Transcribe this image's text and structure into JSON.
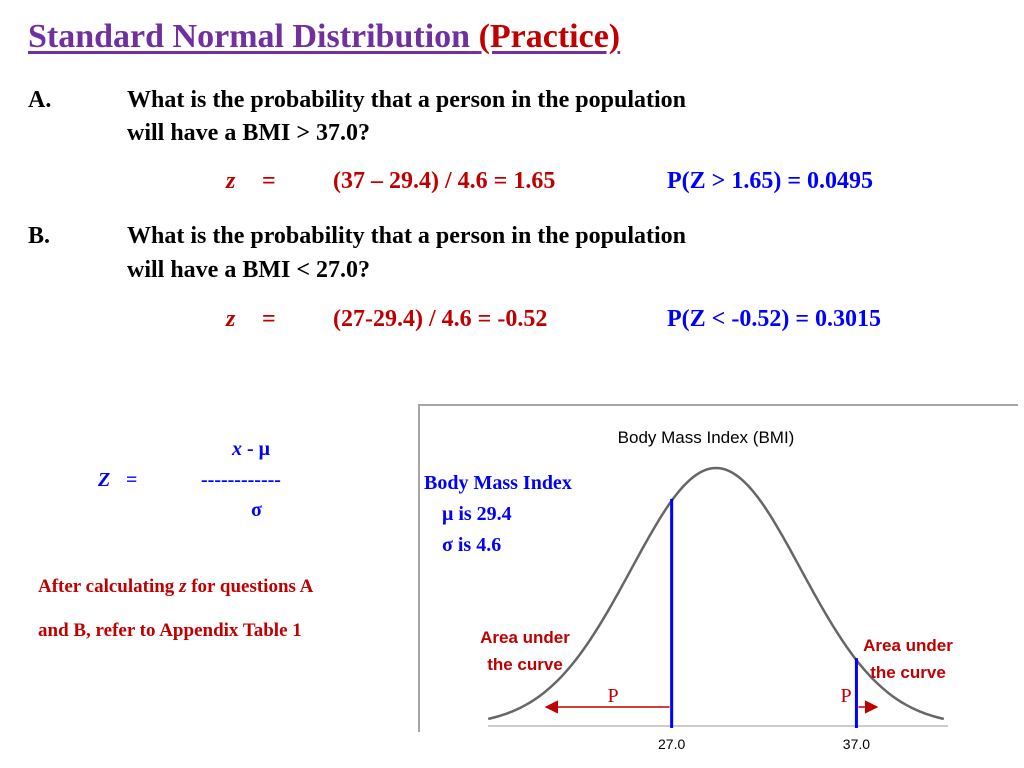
{
  "title": {
    "main": "Standard Normal Distribution",
    "suffix": "(Practice)"
  },
  "questions": [
    {
      "letter": "A.",
      "line1": "What is the probability that a person in the population",
      "line2": "will have a BMI > 37.0?",
      "z_symbol": "z",
      "equals": "=",
      "calculation": "(37 – 29.4) / 4.6  =  1.65",
      "probability": "P(Z > 1.65)  =  0.0495"
    },
    {
      "letter": "B.",
      "line1": "What is the probability that a person in the population",
      "line2": "will have a BMI < 27.0?",
      "z_symbol": "z",
      "equals": "=",
      "calculation": "(27-29.4) / 4.6   =  -0.52",
      "probability": "P(Z < -0.52)  =  0.3015"
    }
  ],
  "formula": {
    "lhs": "Z",
    "equals": "=",
    "numerator_x": "x",
    "numerator_rest": " - μ",
    "bar": "------------",
    "denominator": "σ"
  },
  "note": {
    "line1_a": "After calculating ",
    "line1_z": "z",
    "line1_b": " for questions A",
    "line2": "and B, refer to Appendix Table 1"
  },
  "chart_data": {
    "type": "area",
    "title": "Body Mass Index (BMI)",
    "distribution": "normal",
    "mean": 29.4,
    "sd": 4.6,
    "legend_lines": [
      "Body Mass Index",
      "μ is 29.4",
      "σ is 4.6"
    ],
    "cutoffs": [
      {
        "value": 27.0,
        "label": "27.0"
      },
      {
        "value": 37.0,
        "label": "37.0"
      }
    ],
    "annotations": [
      {
        "line1": "Area under",
        "line2": "the curve",
        "side": "left"
      },
      {
        "line1": "Area under",
        "line2": "the curve",
        "side": "right"
      }
    ],
    "region_labels": [
      "P",
      "P"
    ],
    "colors": {
      "curve": "#666666",
      "cutoff": "#0000ff",
      "arrow": "#c00000",
      "legend": "#0000ff",
      "annotation": "#c00000"
    }
  }
}
